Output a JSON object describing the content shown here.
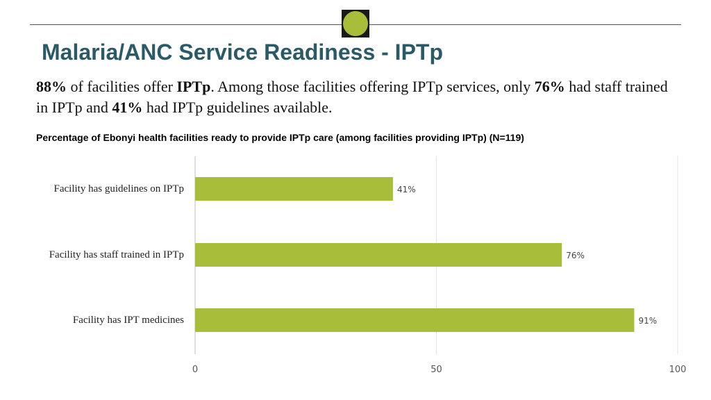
{
  "slide": {
    "title": "Malaria/ANC Service Readiness - IPTp",
    "summary_parts": [
      {
        "text": "88%",
        "bold": true
      },
      {
        "text": " of facilities offer ",
        "bold": false
      },
      {
        "text": "IPTp",
        "bold": true
      },
      {
        "text": ". Among those facilities offering IPTp services, only ",
        "bold": false
      },
      {
        "text": "76%",
        "bold": true
      },
      {
        "text": " had staff trained in IPTp and ",
        "bold": false
      },
      {
        "text": "41%",
        "bold": true
      },
      {
        "text": " had IPTp guidelines available.",
        "bold": false
      }
    ]
  },
  "colors": {
    "bar": "#a8bd3a",
    "title": "#2a5a66",
    "logo": "#a8bd3a"
  },
  "chart_data": {
    "type": "bar",
    "orientation": "horizontal",
    "title": "Percentage of Ebonyi health facilities ready to provide IPTp care (among facilities providing IPTp) (N=119)",
    "categories": [
      "Facility has guidelines on IPTp",
      "Facility has staff trained in IPTp",
      "Facility has IPT medicines"
    ],
    "values": [
      41,
      76,
      91
    ],
    "data_labels": [
      "41%",
      "76%",
      "91%"
    ],
    "xlim": [
      0,
      100
    ],
    "xticks": [
      0,
      50,
      100
    ],
    "xlabel": "",
    "ylabel": "",
    "grid": true
  }
}
